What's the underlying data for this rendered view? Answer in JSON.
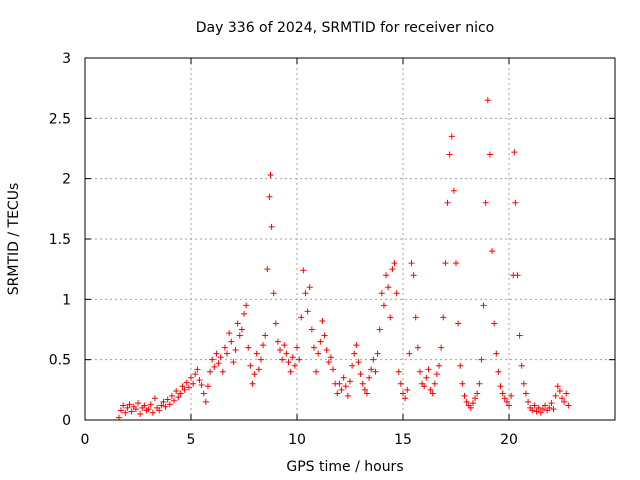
{
  "chart_data": {
    "type": "scatter",
    "title": "Day 336 of 2024, SRMTID for receiver nico",
    "xlabel": "GPS time / hours",
    "ylabel": "SRMTID / TECUs",
    "xlim": [
      0,
      25
    ],
    "ylim": [
      0,
      3
    ],
    "xticks": [
      0,
      5,
      10,
      15,
      20
    ],
    "xtick_labels": [
      "0",
      "5",
      "10",
      "15",
      "20"
    ],
    "yticks": [
      0,
      0.5,
      1,
      1.5,
      2,
      2.5,
      3
    ],
    "ytick_labels": [
      "0",
      "0.5",
      "1",
      "1.5",
      "2",
      "2.5",
      "3"
    ],
    "grid": true,
    "marker": "+",
    "color": "#ff0000",
    "series": [
      {
        "name": "SRMTID",
        "points": [
          [
            1.6,
            0.02
          ],
          [
            1.7,
            0.08
          ],
          [
            1.8,
            0.12
          ],
          [
            1.9,
            0.06
          ],
          [
            2.0,
            0.1
          ],
          [
            2.1,
            0.13
          ],
          [
            2.2,
            0.07
          ],
          [
            2.3,
            0.11
          ],
          [
            2.4,
            0.09
          ],
          [
            2.5,
            0.14
          ],
          [
            2.6,
            0.05
          ],
          [
            2.7,
            0.1
          ],
          [
            2.8,
            0.12
          ],
          [
            2.9,
            0.08
          ],
          [
            3.0,
            0.09
          ],
          [
            3.1,
            0.13
          ],
          [
            3.2,
            0.06
          ],
          [
            3.3,
            0.18
          ],
          [
            3.4,
            0.1
          ],
          [
            3.5,
            0.08
          ],
          [
            3.6,
            0.12
          ],
          [
            3.7,
            0.15
          ],
          [
            3.8,
            0.11
          ],
          [
            3.9,
            0.17
          ],
          [
            4.0,
            0.13
          ],
          [
            4.1,
            0.2
          ],
          [
            4.2,
            0.16
          ],
          [
            4.3,
            0.24
          ],
          [
            4.4,
            0.19
          ],
          [
            4.5,
            0.22
          ],
          [
            4.6,
            0.28
          ],
          [
            4.7,
            0.25
          ],
          [
            4.8,
            0.31
          ],
          [
            4.9,
            0.27
          ],
          [
            5.0,
            0.35
          ],
          [
            5.1,
            0.3
          ],
          [
            5.2,
            0.38
          ],
          [
            5.3,
            0.42
          ],
          [
            5.4,
            0.33
          ],
          [
            5.5,
            0.29
          ],
          [
            5.6,
            0.22
          ],
          [
            5.7,
            0.15
          ],
          [
            5.8,
            0.28
          ],
          [
            5.9,
            0.4
          ],
          [
            6.0,
            0.5
          ],
          [
            6.1,
            0.44
          ],
          [
            6.2,
            0.55
          ],
          [
            6.3,
            0.47
          ],
          [
            6.4,
            0.52
          ],
          [
            6.5,
            0.4
          ],
          [
            6.6,
            0.6
          ],
          [
            6.7,
            0.55
          ],
          [
            6.8,
            0.72
          ],
          [
            6.9,
            0.65
          ],
          [
            7.0,
            0.48
          ],
          [
            7.1,
            0.58
          ],
          [
            7.2,
            0.8
          ],
          [
            7.3,
            0.7
          ],
          [
            7.4,
            0.75
          ],
          [
            7.5,
            0.88
          ],
          [
            7.6,
            0.95
          ],
          [
            7.7,
            0.6
          ],
          [
            7.8,
            0.45
          ],
          [
            7.9,
            0.3
          ],
          [
            8.0,
            0.38
          ],
          [
            8.1,
            0.55
          ],
          [
            8.2,
            0.42
          ],
          [
            8.3,
            0.5
          ],
          [
            8.4,
            0.62
          ],
          [
            8.5,
            0.7
          ],
          [
            8.6,
            1.25
          ],
          [
            8.7,
            1.85
          ],
          [
            8.75,
            2.03
          ],
          [
            8.8,
            1.6
          ],
          [
            8.9,
            1.05
          ],
          [
            9.0,
            0.8
          ],
          [
            9.1,
            0.65
          ],
          [
            9.2,
            0.58
          ],
          [
            9.3,
            0.5
          ],
          [
            9.4,
            0.62
          ],
          [
            9.5,
            0.55
          ],
          [
            9.6,
            0.48
          ],
          [
            9.7,
            0.4
          ],
          [
            9.8,
            0.52
          ],
          [
            9.9,
            0.45
          ],
          [
            10.0,
            0.6
          ],
          [
            10.1,
            0.5
          ],
          [
            10.2,
            0.85
          ],
          [
            10.3,
            1.24
          ],
          [
            10.4,
            1.05
          ],
          [
            10.5,
            0.9
          ],
          [
            10.6,
            1.1
          ],
          [
            10.7,
            0.75
          ],
          [
            10.8,
            0.6
          ],
          [
            10.9,
            0.4
          ],
          [
            11.0,
            0.55
          ],
          [
            11.1,
            0.65
          ],
          [
            11.2,
            0.82
          ],
          [
            11.3,
            0.7
          ],
          [
            11.4,
            0.58
          ],
          [
            11.5,
            0.48
          ],
          [
            11.6,
            0.52
          ],
          [
            11.7,
            0.42
          ],
          [
            11.8,
            0.3
          ],
          [
            11.9,
            0.22
          ],
          [
            12.0,
            0.3
          ],
          [
            12.1,
            0.25
          ],
          [
            12.2,
            0.35
          ],
          [
            12.3,
            0.28
          ],
          [
            12.4,
            0.2
          ],
          [
            12.5,
            0.32
          ],
          [
            12.6,
            0.45
          ],
          [
            12.7,
            0.55
          ],
          [
            12.8,
            0.62
          ],
          [
            12.9,
            0.48
          ],
          [
            13.0,
            0.38
          ],
          [
            13.1,
            0.3
          ],
          [
            13.2,
            0.25
          ],
          [
            13.3,
            0.22
          ],
          [
            13.4,
            0.35
          ],
          [
            13.5,
            0.42
          ],
          [
            13.6,
            0.5
          ],
          [
            13.7,
            0.4
          ],
          [
            13.8,
            0.55
          ],
          [
            13.9,
            0.75
          ],
          [
            14.0,
            1.05
          ],
          [
            14.1,
            0.95
          ],
          [
            14.2,
            1.2
          ],
          [
            14.3,
            1.1
          ],
          [
            14.4,
            0.85
          ],
          [
            14.5,
            1.25
          ],
          [
            14.6,
            1.3
          ],
          [
            14.7,
            1.05
          ],
          [
            14.8,
            0.4
          ],
          [
            14.9,
            0.3
          ],
          [
            15.0,
            0.22
          ],
          [
            15.1,
            0.18
          ],
          [
            15.2,
            0.25
          ],
          [
            15.3,
            0.55
          ],
          [
            15.4,
            1.3
          ],
          [
            15.5,
            1.2
          ],
          [
            15.6,
            0.85
          ],
          [
            15.7,
            0.6
          ],
          [
            15.8,
            0.4
          ],
          [
            15.9,
            0.3
          ],
          [
            16.0,
            0.28
          ],
          [
            16.1,
            0.35
          ],
          [
            16.2,
            0.42
          ],
          [
            16.3,
            0.25
          ],
          [
            16.4,
            0.22
          ],
          [
            16.5,
            0.3
          ],
          [
            16.6,
            0.38
          ],
          [
            16.7,
            0.45
          ],
          [
            16.8,
            0.6
          ],
          [
            16.9,
            0.85
          ],
          [
            17.0,
            1.3
          ],
          [
            17.1,
            1.8
          ],
          [
            17.2,
            2.2
          ],
          [
            17.3,
            2.35
          ],
          [
            17.4,
            1.9
          ],
          [
            17.5,
            1.3
          ],
          [
            17.6,
            0.8
          ],
          [
            17.7,
            0.45
          ],
          [
            17.8,
            0.3
          ],
          [
            17.9,
            0.2
          ],
          [
            18.0,
            0.15
          ],
          [
            18.1,
            0.12
          ],
          [
            18.2,
            0.1
          ],
          [
            18.3,
            0.14
          ],
          [
            18.4,
            0.18
          ],
          [
            18.5,
            0.22
          ],
          [
            18.6,
            0.3
          ],
          [
            18.7,
            0.5
          ],
          [
            18.8,
            0.95
          ],
          [
            18.9,
            1.8
          ],
          [
            19.0,
            2.65
          ],
          [
            19.1,
            2.2
          ],
          [
            19.2,
            1.4
          ],
          [
            19.3,
            0.8
          ],
          [
            19.4,
            0.55
          ],
          [
            19.5,
            0.4
          ],
          [
            19.6,
            0.28
          ],
          [
            19.7,
            0.22
          ],
          [
            19.8,
            0.18
          ],
          [
            19.9,
            0.15
          ],
          [
            20.0,
            0.12
          ],
          [
            20.1,
            0.2
          ],
          [
            20.2,
            1.2
          ],
          [
            20.25,
            2.22
          ],
          [
            20.3,
            1.8
          ],
          [
            20.4,
            1.2
          ],
          [
            20.5,
            0.7
          ],
          [
            20.6,
            0.45
          ],
          [
            20.7,
            0.3
          ],
          [
            20.8,
            0.22
          ],
          [
            20.9,
            0.15
          ],
          [
            21.0,
            0.1
          ],
          [
            21.1,
            0.08
          ],
          [
            21.2,
            0.12
          ],
          [
            21.3,
            0.07
          ],
          [
            21.4,
            0.1
          ],
          [
            21.5,
            0.06
          ],
          [
            21.6,
            0.09
          ],
          [
            21.7,
            0.12
          ],
          [
            21.8,
            0.08
          ],
          [
            21.9,
            0.1
          ],
          [
            22.0,
            0.14
          ],
          [
            22.1,
            0.09
          ],
          [
            22.2,
            0.2
          ],
          [
            22.3,
            0.28
          ],
          [
            22.4,
            0.24
          ],
          [
            22.5,
            0.18
          ],
          [
            22.6,
            0.15
          ],
          [
            22.7,
            0.22
          ],
          [
            22.8,
            0.12
          ]
        ]
      }
    ]
  }
}
